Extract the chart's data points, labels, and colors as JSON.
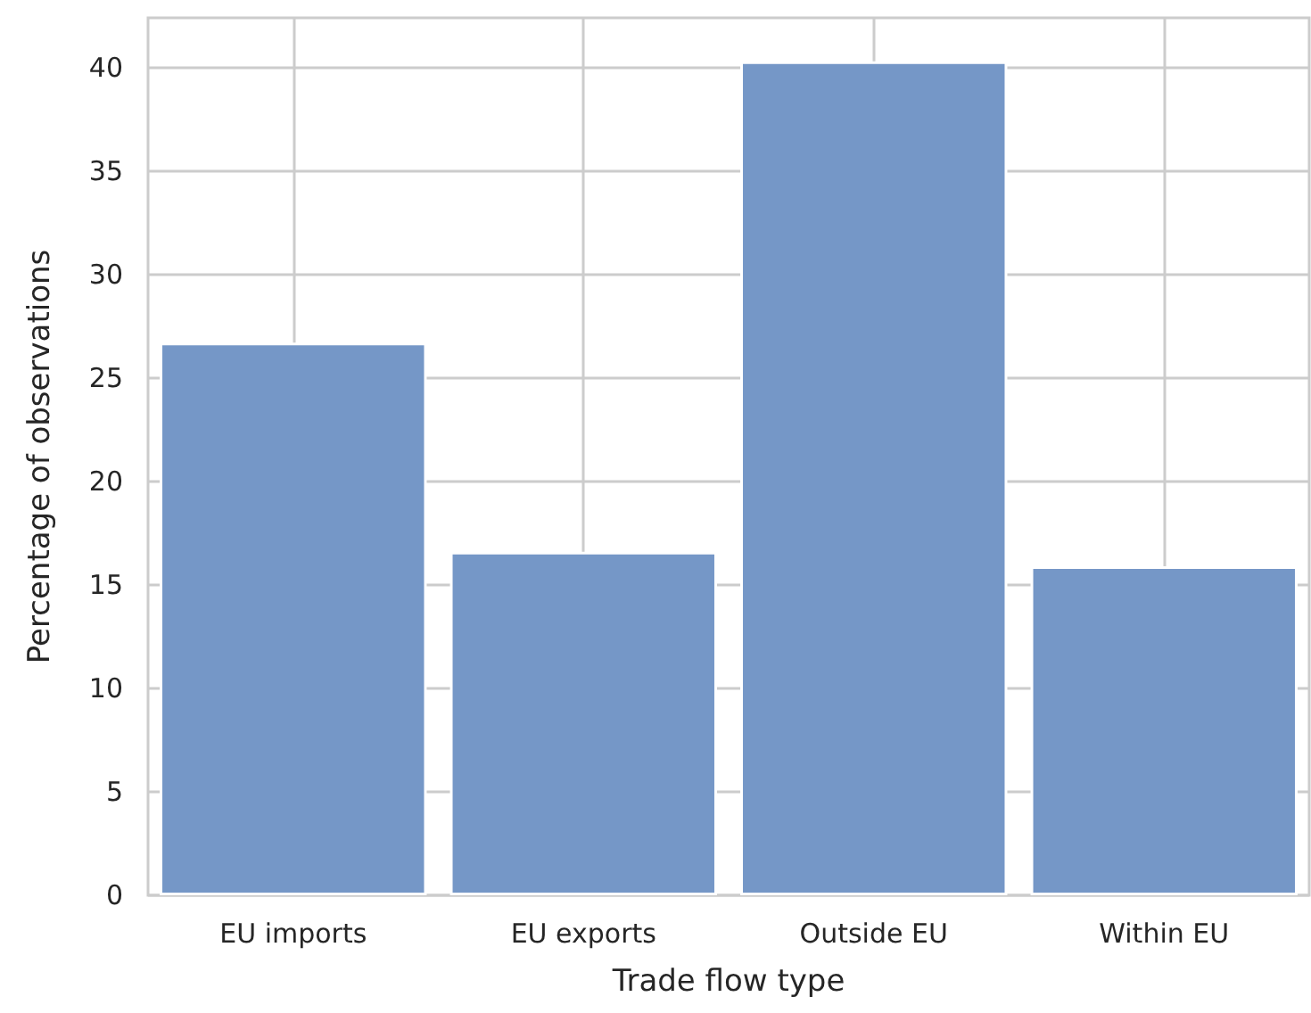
{
  "chart_data": {
    "type": "bar",
    "xlabel": "Trade flow type",
    "ylabel": "Percentage of observations",
    "categories": [
      "EU imports",
      "EU exports",
      "Outside EU",
      "Within EU"
    ],
    "values": [
      26.7,
      16.6,
      40.3,
      15.9
    ],
    "color": "#7597c7",
    "ylim": [
      0,
      42.4
    ],
    "yticks": [
      0,
      5,
      10,
      15,
      20,
      25,
      30,
      35,
      40
    ],
    "grid": true
  }
}
